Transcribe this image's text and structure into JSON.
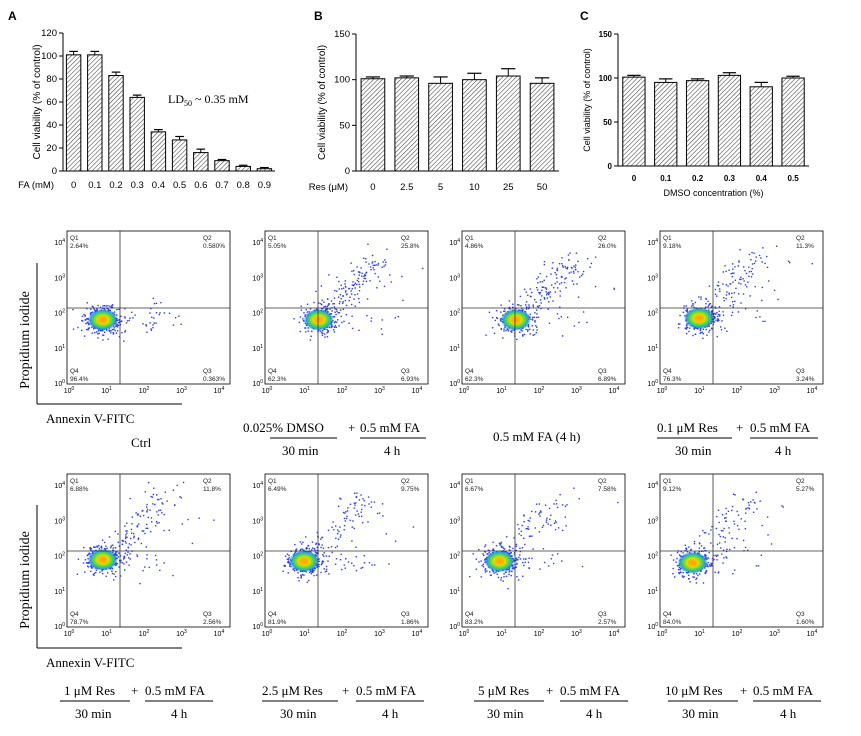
{
  "panels": {
    "a": "A",
    "b": "B",
    "c": "C"
  },
  "annotation": {
    "ld50": "LD",
    "ld50_sub": "50",
    "ld50_rest": " ~ 0.35 mM"
  },
  "labels": {
    "propidium": "Propidium iodide",
    "annexin": "Annexin V-FITC",
    "ctrl": "Ctrl",
    "dmso_left": "0.025%  DMSO",
    "plus": "+",
    "fa_05": "0.5 mM FA",
    "fa_4h": "0.5 mM FA (4 h)",
    "t30": "30 min",
    "t4h": "4 h",
    "res_01": "0.1 μM Res",
    "res_1": "1 μM Res",
    "res_25": "2.5 μM Res",
    "res_5": "5 μM Res",
    "res_10": "10 μM Res"
  },
  "chart_data": [
    {
      "type": "bar",
      "panel": "A",
      "xlabel": "FA (mM)",
      "ylabel": "Cell viability (% of control)",
      "categories": [
        "0",
        "0.1",
        "0.2",
        "0.3",
        "0.4",
        "0.5",
        "0.6",
        "0.7",
        "0.8",
        "0.9"
      ],
      "values": [
        101,
        101,
        83,
        64,
        34,
        27,
        16,
        9,
        4,
        2
      ],
      "errors": [
        3,
        3,
        3,
        2,
        2,
        3,
        3,
        1,
        1,
        1
      ],
      "ylim": [
        0,
        120
      ],
      "yticks": [
        "0",
        "20",
        "40",
        "60",
        "80",
        "100",
        "120"
      ]
    },
    {
      "type": "bar",
      "panel": "B",
      "xlabel": "Res (μM)",
      "ylabel": "Cell viability (% of control)",
      "categories": [
        "0",
        "2.5",
        "5",
        "10",
        "25",
        "50"
      ],
      "values": [
        101,
        102,
        96,
        100,
        104,
        96
      ],
      "errors": [
        2,
        2,
        7,
        7,
        8,
        6
      ],
      "ylim": [
        0,
        150
      ],
      "yticks": [
        "0",
        "50",
        "100",
        "150"
      ]
    },
    {
      "type": "bar",
      "panel": "C",
      "xlabel": "DMSO concentration (%)",
      "ylabel": "Cell viability (% of control)",
      "categories": [
        "0",
        "0.1",
        "0.2",
        "0.3",
        "0.4",
        "0.5"
      ],
      "values": [
        101,
        95,
        97,
        103,
        90,
        100
      ],
      "errors": [
        2,
        4,
        2,
        3,
        5,
        2
      ],
      "ylim": [
        0,
        150
      ],
      "yticks": [
        "0",
        "50",
        "100",
        "150"
      ]
    },
    {
      "type": "scatter",
      "panel": "flow",
      "description": "Annexin V-FITC / PI flow cytometry quadrant percentages",
      "quadrant_labels": [
        "Q1",
        "Q2",
        "Q3",
        "Q4"
      ],
      "axis_ticks": [
        "10^0",
        "10^1",
        "10^2",
        "10^3",
        "10^4"
      ],
      "samples": [
        {
          "Q1": "2.64%",
          "Q2": "0.580%",
          "Q3": "0.363%",
          "Q4": "96.4%"
        },
        {
          "Q1": "5.05%",
          "Q2": "25.8%",
          "Q3": "6.93%",
          "Q4": "62.3%"
        },
        {
          "Q1": "4.86%",
          "Q2": "26.0%",
          "Q3": "6.89%",
          "Q4": "62.3%"
        },
        {
          "Q1": "9.18%",
          "Q2": "11.3%",
          "Q3": "3.24%",
          "Q4": "76.3%"
        },
        {
          "Q1": "6.88%",
          "Q2": "11.8%",
          "Q3": "2.56%",
          "Q4": "78.7%"
        },
        {
          "Q1": "6.49%",
          "Q2": "9.75%",
          "Q3": "1.86%",
          "Q4": "81.9%"
        },
        {
          "Q1": "6.67%",
          "Q2": "7.58%",
          "Q3": "2.57%",
          "Q4": "83.2%"
        },
        {
          "Q1": "9.12%",
          "Q2": "5.27%",
          "Q3": "1.60%",
          "Q4": "84.0%"
        }
      ]
    }
  ]
}
